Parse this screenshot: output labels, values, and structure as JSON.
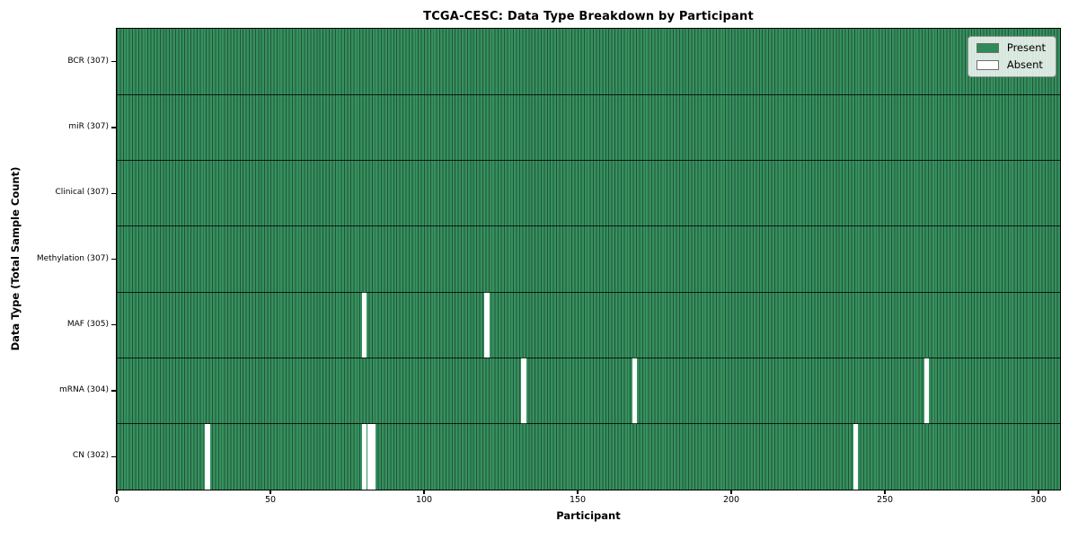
{
  "chart_data": {
    "type": "heatmap",
    "title": "TCGA-CESC: Data Type Breakdown by Participant",
    "xlabel": "Participant",
    "ylabel": "Data Type (Total Sample Count)",
    "n_participants": 307,
    "x_ticks": [
      0,
      50,
      100,
      150,
      200,
      250,
      300
    ],
    "x_range": [
      0,
      307
    ],
    "grid": false,
    "rows": [
      {
        "label": "BCR (307)",
        "name": "BCR",
        "present_count": 307,
        "absent_participants": []
      },
      {
        "label": "miR (307)",
        "name": "miR",
        "present_count": 307,
        "absent_participants": []
      },
      {
        "label": "Clinical (307)",
        "name": "Clinical",
        "present_count": 307,
        "absent_participants": []
      },
      {
        "label": "Methylation (307)",
        "name": "Methylation",
        "present_count": 307,
        "absent_participants": []
      },
      {
        "label": "MAF (305)",
        "name": "MAF",
        "present_count": 305,
        "absent_participants": [
          80,
          120
        ]
      },
      {
        "label": "mRNA (304)",
        "name": "mRNA",
        "present_count": 304,
        "absent_participants": [
          132,
          168,
          263
        ]
      },
      {
        "label": "CN (302)",
        "name": "CN",
        "present_count": 302,
        "absent_participants": [
          29,
          80,
          82,
          83,
          240
        ]
      }
    ],
    "legend": {
      "position": "upper right",
      "entries": [
        {
          "label": "Present",
          "color": "#2e8b57"
        },
        {
          "label": "Absent",
          "color": "#ffffff"
        }
      ]
    },
    "colors": {
      "present": "#2e8b57",
      "absent": "#ffffff",
      "cell_edge": "#24523a",
      "row_separator": "#000000"
    }
  }
}
